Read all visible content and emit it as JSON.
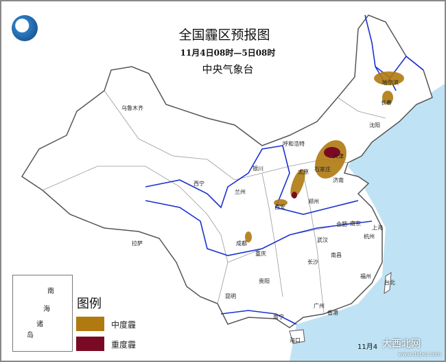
{
  "header": {
    "title": "全国霾区预报图",
    "period": "11月4日08时—5日08时",
    "issuer": "中央气象台"
  },
  "legend": {
    "title": "图例",
    "items": [
      {
        "label": "中度霾",
        "color": "#b07a10"
      },
      {
        "label": "重度霾",
        "color": "#7a0a24"
      }
    ]
  },
  "inset": {
    "labels": [
      "南",
      "海",
      "诸",
      "岛"
    ]
  },
  "cities": [
    "乌鲁木齐",
    "拉萨",
    "西宁",
    "兰州",
    "银川",
    "呼和浩特",
    "太原",
    "石家庄",
    "天津",
    "济南",
    "郑州",
    "西安",
    "成都",
    "重庆",
    "贵阳",
    "昆明",
    "南宁",
    "长沙",
    "武汉",
    "合肥",
    "南京",
    "上海",
    "杭州",
    "南昌",
    "福州",
    "台北",
    "广州",
    "香港",
    "海口",
    "哈尔滨",
    "长春",
    "沈阳"
  ],
  "footer": {
    "timestamp": "11月4"
  },
  "watermark": {
    "name": "大西北网",
    "url": "www.dxbei.com"
  },
  "colors": {
    "sea": "#bfe3f5",
    "river": "#1a2fd0",
    "border": "#555555"
  }
}
